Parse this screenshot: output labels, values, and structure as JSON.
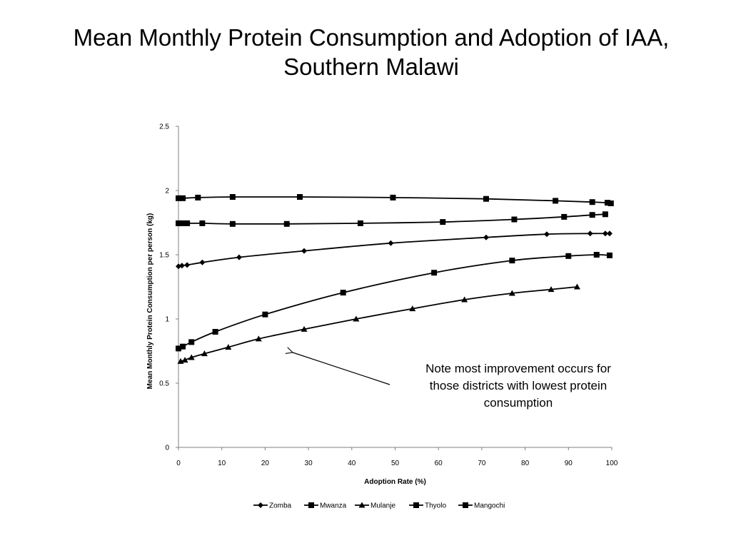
{
  "slide": {
    "title_line1": "Mean Monthly Protein Consumption and Adoption of IAA,",
    "title_line2": "Southern Malawi"
  },
  "annotation": {
    "lines": [
      "Note most improvement occurs for",
      "those districts with lowest protein",
      "consumption"
    ]
  },
  "colors": {
    "series": "#000000",
    "axis": "#808080"
  },
  "chart_data": {
    "type": "line",
    "title": "",
    "xlabel": "Adoption Rate (%)",
    "ylabel": "Mean Monthly Protein  Consumption per person (kg)",
    "xlim": [
      0,
      100
    ],
    "ylim": [
      0,
      2.5
    ],
    "x_ticks": [
      0,
      10,
      20,
      30,
      40,
      50,
      60,
      70,
      80,
      90,
      100
    ],
    "y_ticks": [
      0,
      0.5,
      1,
      1.5,
      2,
      2.5
    ],
    "y_tick_labels": [
      "0",
      "0.5",
      "1",
      "1.5",
      "2",
      "2.5"
    ],
    "grid": false,
    "legend_position": "bottom",
    "series": [
      {
        "name": "Zomba",
        "marker": "diamond",
        "points": [
          [
            0,
            1.41
          ],
          [
            0.8,
            1.415
          ],
          [
            2,
            1.42
          ],
          [
            5.5,
            1.44
          ],
          [
            14,
            1.48
          ],
          [
            29,
            1.53
          ],
          [
            49,
            1.59
          ],
          [
            71,
            1.635
          ],
          [
            85,
            1.66
          ],
          [
            95,
            1.665
          ],
          [
            98.5,
            1.665
          ],
          [
            99.5,
            1.665
          ]
        ]
      },
      {
        "name": "Mwanza",
        "marker": "square",
        "points": [
          [
            0,
            1.94
          ],
          [
            1,
            1.94
          ],
          [
            4.5,
            1.945
          ],
          [
            12.5,
            1.95
          ],
          [
            28,
            1.95
          ],
          [
            49.5,
            1.945
          ],
          [
            71,
            1.935
          ],
          [
            87,
            1.92
          ],
          [
            95.5,
            1.91
          ],
          [
            99,
            1.905
          ],
          [
            99.8,
            1.9
          ]
        ]
      },
      {
        "name": "Mulanje",
        "marker": "triangle",
        "points": [
          [
            0.5,
            0.67
          ],
          [
            1.5,
            0.68
          ],
          [
            3,
            0.7
          ],
          [
            6,
            0.73
          ],
          [
            11.5,
            0.78
          ],
          [
            18.5,
            0.845
          ],
          [
            29,
            0.92
          ],
          [
            41,
            1.0
          ],
          [
            54,
            1.08
          ],
          [
            66,
            1.15
          ],
          [
            77,
            1.2
          ],
          [
            86,
            1.23
          ],
          [
            92,
            1.25
          ]
        ]
      },
      {
        "name": "Thyolo",
        "marker": "square",
        "points": [
          [
            0,
            1.745
          ],
          [
            0.8,
            1.745
          ],
          [
            2,
            1.745
          ],
          [
            5.5,
            1.745
          ],
          [
            12.5,
            1.74
          ],
          [
            25,
            1.74
          ],
          [
            42,
            1.745
          ],
          [
            61,
            1.755
          ],
          [
            77.5,
            1.775
          ],
          [
            89,
            1.795
          ],
          [
            95.5,
            1.81
          ],
          [
            98.5,
            1.815
          ]
        ]
      },
      {
        "name": "Mangochi",
        "marker": "square",
        "points": [
          [
            0,
            0.77
          ],
          [
            1,
            0.785
          ],
          [
            3,
            0.82
          ],
          [
            8.5,
            0.9
          ],
          [
            20,
            1.035
          ],
          [
            38,
            1.205
          ],
          [
            59,
            1.36
          ],
          [
            77,
            1.455
          ],
          [
            90,
            1.49
          ],
          [
            96.5,
            1.5
          ],
          [
            99.5,
            1.495
          ]
        ]
      }
    ]
  }
}
